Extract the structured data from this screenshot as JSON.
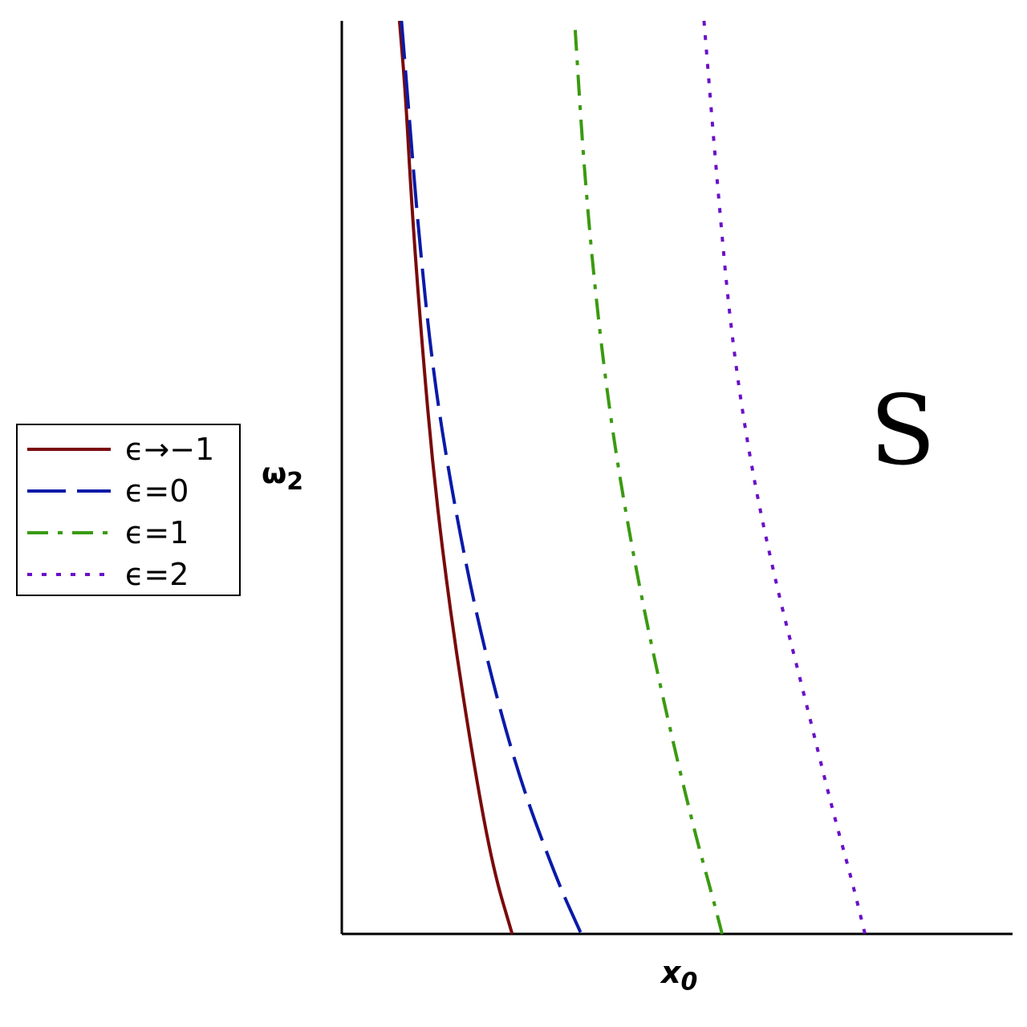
{
  "chart_data": {
    "type": "line",
    "title": "",
    "xlabel": {
      "base": "x",
      "sub": "0"
    },
    "ylabel": {
      "base": "ω",
      "sub": "2"
    },
    "grid": false,
    "legend_position": "left-outside",
    "annotation": "S",
    "series": [
      {
        "name": "ϵ→−1",
        "color": "#7a0a0a",
        "style": "solid",
        "points": [
          [
            0.086,
            1.0
          ],
          [
            0.095,
            0.92
          ],
          [
            0.104,
            0.8
          ],
          [
            0.118,
            0.66
          ],
          [
            0.137,
            0.5
          ],
          [
            0.164,
            0.34
          ],
          [
            0.198,
            0.18
          ],
          [
            0.226,
            0.07
          ],
          [
            0.254,
            0.0
          ]
        ]
      },
      {
        "name": "ϵ=0",
        "color": "#0a1aa8",
        "style": "dashed",
        "points": [
          [
            0.089,
            1.0
          ],
          [
            0.1,
            0.9
          ],
          [
            0.113,
            0.78
          ],
          [
            0.135,
            0.62
          ],
          [
            0.165,
            0.48
          ],
          [
            0.206,
            0.33
          ],
          [
            0.26,
            0.18
          ],
          [
            0.32,
            0.06
          ],
          [
            0.357,
            0.0
          ]
        ]
      },
      {
        "name": "ϵ=1",
        "color": "#3a9a10",
        "style": "dashdot",
        "points": [
          [
            0.348,
            0.99
          ],
          [
            0.36,
            0.85
          ],
          [
            0.378,
            0.7
          ],
          [
            0.403,
            0.55
          ],
          [
            0.438,
            0.4
          ],
          [
            0.478,
            0.26
          ],
          [
            0.523,
            0.12
          ],
          [
            0.553,
            0.04
          ],
          [
            0.567,
            0.0
          ]
        ]
      },
      {
        "name": "ϵ=2",
        "color": "#6a10c8",
        "style": "dotted",
        "points": [
          [
            0.54,
            1.0
          ],
          [
            0.56,
            0.82
          ],
          [
            0.58,
            0.66
          ],
          [
            0.608,
            0.52
          ],
          [
            0.645,
            0.39
          ],
          [
            0.69,
            0.26
          ],
          [
            0.73,
            0.14
          ],
          [
            0.76,
            0.06
          ],
          [
            0.78,
            0.0
          ]
        ]
      }
    ]
  }
}
